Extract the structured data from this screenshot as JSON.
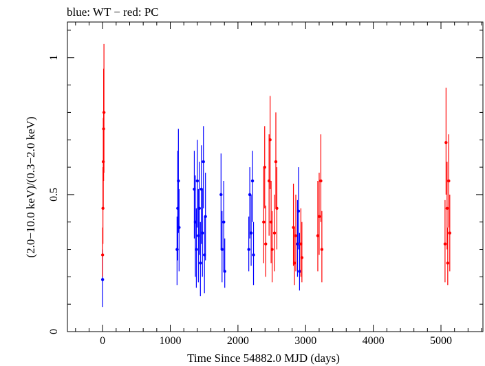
{
  "header": {
    "title": "blue: WT − red: PC"
  },
  "chart_data": {
    "type": "scatter",
    "title": "blue: WT − red: PC",
    "xlabel": "Time Since 54882.0 MJD (days)",
    "ylabel": "(2.0−10.0 keV)/(0.3−2.0 keV)",
    "xlim": [
      -520,
      5620
    ],
    "ylim": [
      0,
      1.13
    ],
    "x_ticks": [
      0,
      1000,
      2000,
      3000,
      4000,
      5000
    ],
    "x_tick_labels": [
      "0",
      "1000",
      "2000",
      "3000",
      "4000",
      "5000"
    ],
    "y_ticks": [
      0,
      0.5,
      1
    ],
    "y_tick_labels": [
      "0",
      "0.5",
      "1"
    ],
    "grid": false,
    "series": [
      {
        "name": "WT",
        "color": "#0000ff",
        "points": [
          {
            "x": 0,
            "y": 0.19,
            "lo": 0.09,
            "hi": 0.3
          },
          {
            "x": 1100,
            "y": 0.3,
            "lo": 0.17,
            "hi": 0.42
          },
          {
            "x": 1110,
            "y": 0.45,
            "lo": 0.26,
            "hi": 0.66
          },
          {
            "x": 1120,
            "y": 0.55,
            "lo": 0.36,
            "hi": 0.74
          },
          {
            "x": 1130,
            "y": 0.38,
            "lo": 0.22,
            "hi": 0.52
          },
          {
            "x": 1355,
            "y": 0.52,
            "lo": 0.34,
            "hi": 0.66
          },
          {
            "x": 1370,
            "y": 0.4,
            "lo": 0.2,
            "hi": 0.57
          },
          {
            "x": 1385,
            "y": 0.3,
            "lo": 0.16,
            "hi": 0.45
          },
          {
            "x": 1400,
            "y": 0.55,
            "lo": 0.38,
            "hi": 0.7
          },
          {
            "x": 1415,
            "y": 0.35,
            "lo": 0.18,
            "hi": 0.52
          },
          {
            "x": 1430,
            "y": 0.45,
            "lo": 0.28,
            "hi": 0.62
          },
          {
            "x": 1445,
            "y": 0.25,
            "lo": 0.13,
            "hi": 0.4
          },
          {
            "x": 1460,
            "y": 0.52,
            "lo": 0.32,
            "hi": 0.68
          },
          {
            "x": 1475,
            "y": 0.36,
            "lo": 0.2,
            "hi": 0.52
          },
          {
            "x": 1490,
            "y": 0.62,
            "lo": 0.45,
            "hi": 0.75
          },
          {
            "x": 1505,
            "y": 0.28,
            "lo": 0.14,
            "hi": 0.42
          },
          {
            "x": 1520,
            "y": 0.42,
            "lo": 0.26,
            "hi": 0.58
          },
          {
            "x": 1750,
            "y": 0.5,
            "lo": 0.3,
            "hi": 0.65
          },
          {
            "x": 1765,
            "y": 0.3,
            "lo": 0.18,
            "hi": 0.44
          },
          {
            "x": 1790,
            "y": 0.4,
            "lo": 0.22,
            "hi": 0.55
          },
          {
            "x": 1805,
            "y": 0.22,
            "lo": 0.16,
            "hi": 0.34
          },
          {
            "x": 2160,
            "y": 0.3,
            "lo": 0.22,
            "hi": 0.42
          },
          {
            "x": 2175,
            "y": 0.5,
            "lo": 0.34,
            "hi": 0.6
          },
          {
            "x": 2195,
            "y": 0.36,
            "lo": 0.24,
            "hi": 0.5
          },
          {
            "x": 2215,
            "y": 0.55,
            "lo": 0.4,
            "hi": 0.66
          },
          {
            "x": 2230,
            "y": 0.28,
            "lo": 0.17,
            "hi": 0.4
          },
          {
            "x": 2880,
            "y": 0.32,
            "lo": 0.2,
            "hi": 0.48
          },
          {
            "x": 2895,
            "y": 0.44,
            "lo": 0.3,
            "hi": 0.6
          },
          {
            "x": 2910,
            "y": 0.22,
            "lo": 0.15,
            "hi": 0.36
          }
        ]
      },
      {
        "name": "PC",
        "color": "#ff0000",
        "points": [
          {
            "x": 0,
            "y": 0.28,
            "lo": 0.2,
            "hi": 0.38
          },
          {
            "x": 5,
            "y": 0.45,
            "lo": 0.32,
            "hi": 0.6
          },
          {
            "x": 10,
            "y": 0.62,
            "lo": 0.45,
            "hi": 0.78
          },
          {
            "x": 15,
            "y": 0.74,
            "lo": 0.55,
            "hi": 0.96
          },
          {
            "x": 20,
            "y": 0.8,
            "lo": 0.58,
            "hi": 1.05
          },
          {
            "x": 2380,
            "y": 0.4,
            "lo": 0.25,
            "hi": 0.6
          },
          {
            "x": 2395,
            "y": 0.6,
            "lo": 0.45,
            "hi": 0.75
          },
          {
            "x": 2410,
            "y": 0.32,
            "lo": 0.2,
            "hi": 0.46
          },
          {
            "x": 2460,
            "y": 0.55,
            "lo": 0.35,
            "hi": 0.72
          },
          {
            "x": 2475,
            "y": 0.7,
            "lo": 0.52,
            "hi": 0.86
          },
          {
            "x": 2490,
            "y": 0.4,
            "lo": 0.25,
            "hi": 0.55
          },
          {
            "x": 2505,
            "y": 0.3,
            "lo": 0.18,
            "hi": 0.44
          },
          {
            "x": 2540,
            "y": 0.36,
            "lo": 0.22,
            "hi": 0.5
          },
          {
            "x": 2560,
            "y": 0.62,
            "lo": 0.45,
            "hi": 0.8
          },
          {
            "x": 2575,
            "y": 0.45,
            "lo": 0.3,
            "hi": 0.6
          },
          {
            "x": 2820,
            "y": 0.38,
            "lo": 0.24,
            "hi": 0.54
          },
          {
            "x": 2835,
            "y": 0.25,
            "lo": 0.17,
            "hi": 0.38
          },
          {
            "x": 2855,
            "y": 0.35,
            "lo": 0.22,
            "hi": 0.5
          },
          {
            "x": 2930,
            "y": 0.32,
            "lo": 0.2,
            "hi": 0.45
          },
          {
            "x": 2945,
            "y": 0.27,
            "lo": 0.18,
            "hi": 0.4
          },
          {
            "x": 3180,
            "y": 0.35,
            "lo": 0.22,
            "hi": 0.55
          },
          {
            "x": 3200,
            "y": 0.42,
            "lo": 0.28,
            "hi": 0.58
          },
          {
            "x": 3225,
            "y": 0.55,
            "lo": 0.4,
            "hi": 0.72
          },
          {
            "x": 3240,
            "y": 0.3,
            "lo": 0.18,
            "hi": 0.44
          },
          {
            "x": 5060,
            "y": 0.32,
            "lo": 0.18,
            "hi": 0.48
          },
          {
            "x": 5075,
            "y": 0.69,
            "lo": 0.5,
            "hi": 0.89
          },
          {
            "x": 5090,
            "y": 0.45,
            "lo": 0.3,
            "hi": 0.62
          },
          {
            "x": 5100,
            "y": 0.25,
            "lo": 0.17,
            "hi": 0.38
          },
          {
            "x": 5115,
            "y": 0.55,
            "lo": 0.38,
            "hi": 0.72
          },
          {
            "x": 5130,
            "y": 0.36,
            "lo": 0.22,
            "hi": 0.5
          }
        ]
      }
    ]
  }
}
